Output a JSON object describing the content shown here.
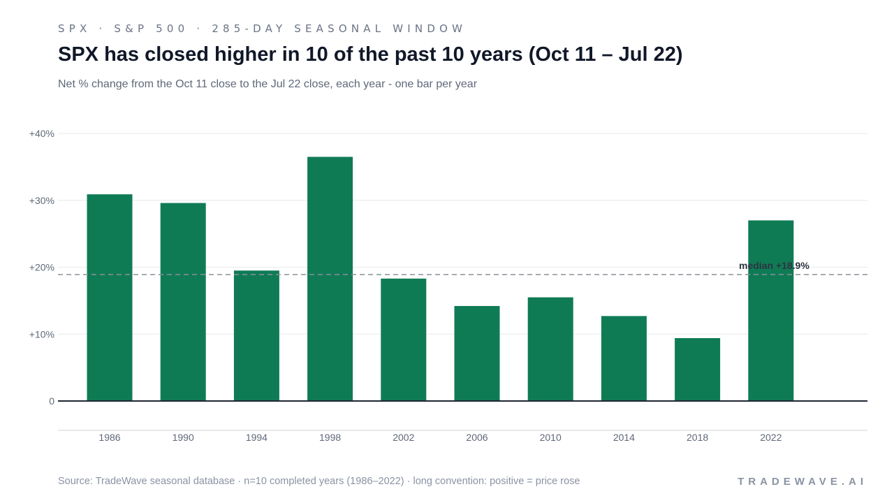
{
  "header": {
    "kicker": "SPX · S&P 500 · 285-DAY SEASONAL WINDOW",
    "title": "SPX has closed higher in 10 of the past 10 years (Oct 11 – Jul 22)",
    "subtitle": "Net % change from the Oct 11 close to the Jul 22 close, each year - one bar per year"
  },
  "footer": {
    "source": "Source: TradeWave seasonal database · n=10 completed years (1986–2022) · long convention: positive = price rose",
    "brand": "TRADEWAVE.AI"
  },
  "colors": {
    "bar": "#0f7b55",
    "grid": "#e6e8ec",
    "baseline": "#1f2633",
    "median_line": "#8a8f99"
  },
  "chart_data": {
    "type": "bar",
    "categories": [
      "1986",
      "1990",
      "1994",
      "1998",
      "2002",
      "2006",
      "2010",
      "2014",
      "2018",
      "2022"
    ],
    "values": [
      30.9,
      29.6,
      19.5,
      36.5,
      18.3,
      14.2,
      15.5,
      12.7,
      9.4,
      27.0
    ],
    "ylim": [
      0,
      40
    ],
    "yticks": [
      0,
      10,
      20,
      30,
      40
    ],
    "ytick_labels": [
      "0",
      "+10%",
      "+20%",
      "+30%",
      "+40%"
    ],
    "median": 18.9,
    "median_label": "median +18.9%",
    "grid": true,
    "legend": "none"
  }
}
